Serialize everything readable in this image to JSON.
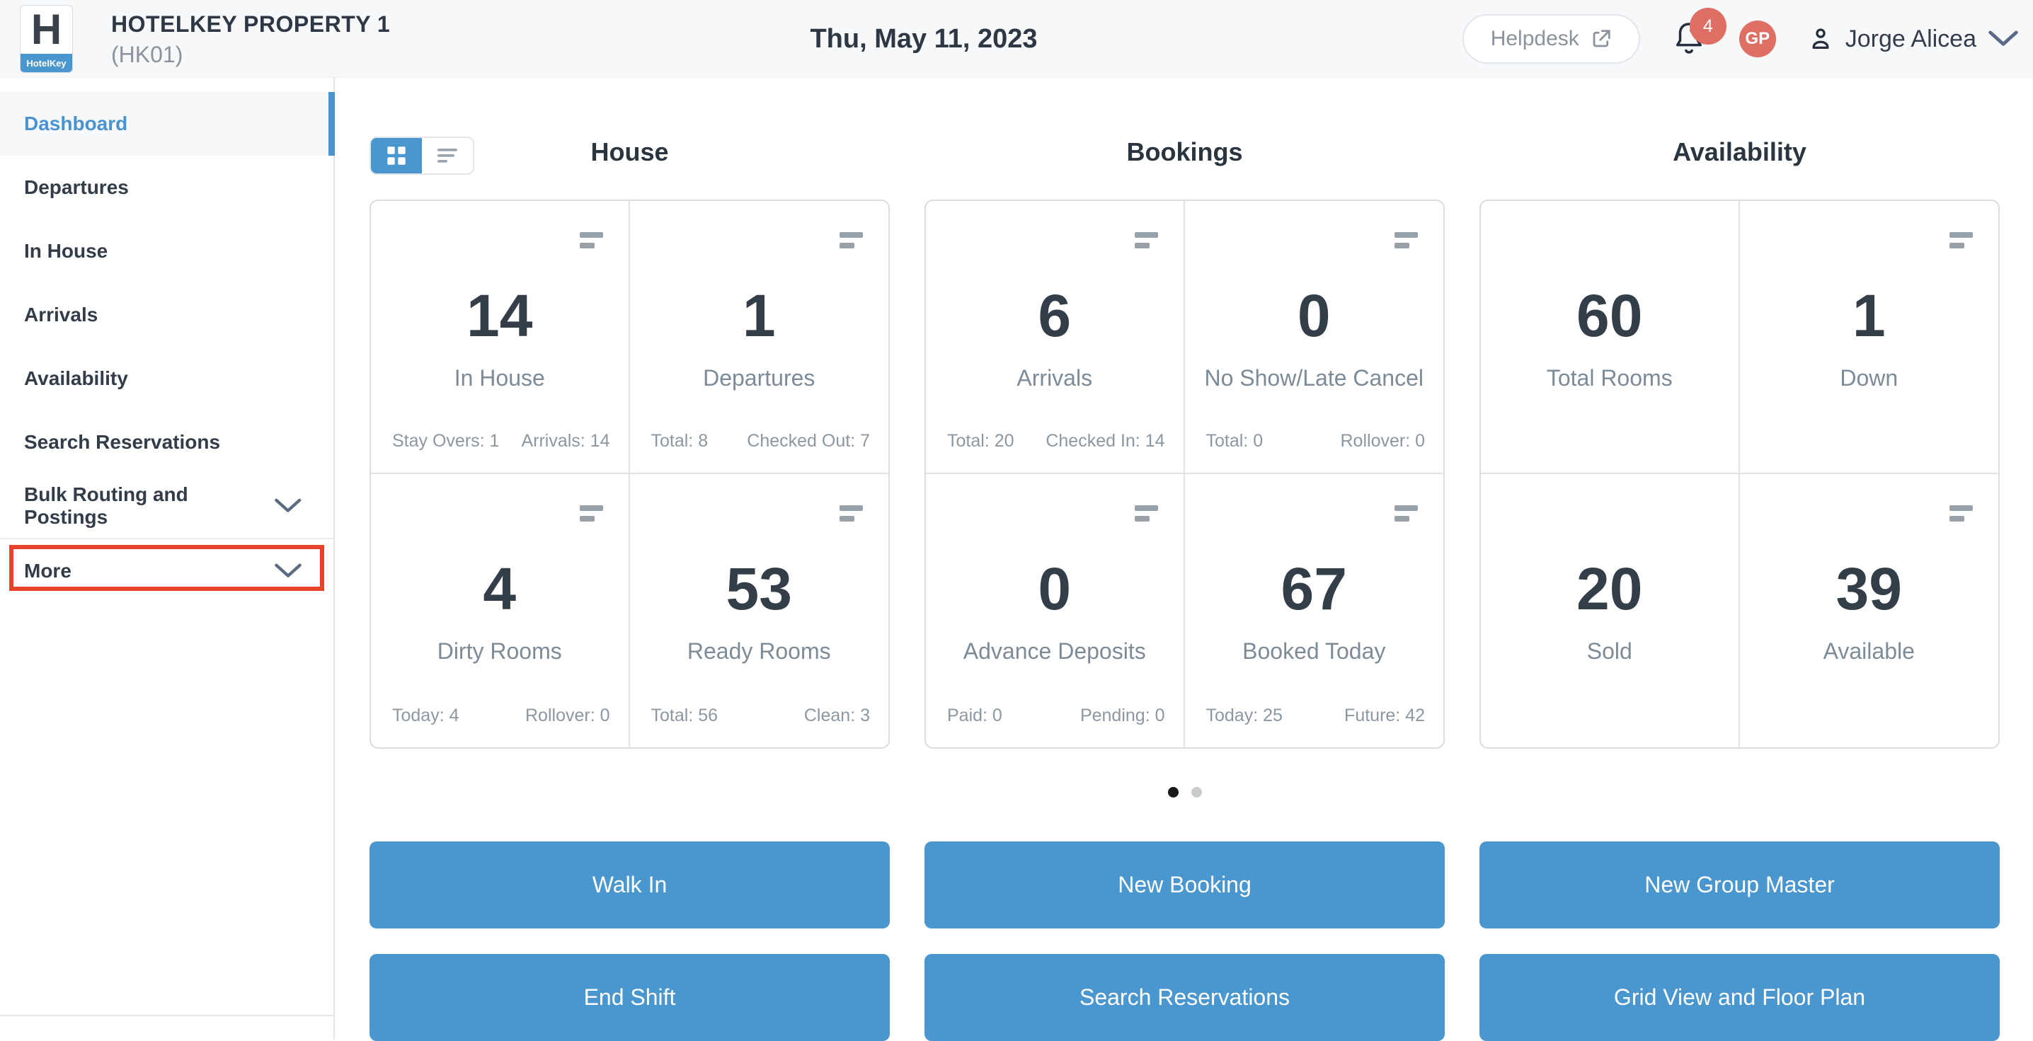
{
  "header": {
    "logo_letter": "H",
    "logo_brand": "HotelKey",
    "property_name": "HOTELKEY PROPERTY 1",
    "property_code": "(HK01)",
    "date": "Thu, May 11, 2023",
    "helpdesk_label": "Helpdesk",
    "notification_count": "4",
    "avatar_initials": "GP",
    "user_name": "Jorge Alicea"
  },
  "sidebar": {
    "items": [
      {
        "label": "Dashboard",
        "active": true
      },
      {
        "label": "Departures"
      },
      {
        "label": "In House"
      },
      {
        "label": "Arrivals"
      },
      {
        "label": "Availability"
      },
      {
        "label": "Search Reservations"
      },
      {
        "label": "Bulk Routing and Postings",
        "chevron": true
      },
      {
        "label": "More",
        "chevron": true,
        "highlighted": true,
        "divider_before": true
      }
    ]
  },
  "dashboard": {
    "view_modes": [
      "grid",
      "list"
    ],
    "active_view": "grid",
    "sections": [
      {
        "title": "House",
        "cells": [
          {
            "value": "14",
            "label": "In House",
            "stat_left": "Stay Overs: 1",
            "stat_right": "Arrivals: 14",
            "icon": true
          },
          {
            "value": "1",
            "label": "Departures",
            "stat_left": "Total: 8",
            "stat_right": "Checked Out: 7",
            "icon": true
          },
          {
            "value": "4",
            "label": "Dirty Rooms",
            "stat_left": "Today: 4",
            "stat_right": "Rollover: 0",
            "icon": true
          },
          {
            "value": "53",
            "label": "Ready Rooms",
            "stat_left": "Total: 56",
            "stat_right": "Clean: 3",
            "icon": true
          }
        ]
      },
      {
        "title": "Bookings",
        "cells": [
          {
            "value": "6",
            "label": "Arrivals",
            "stat_left": "Total: 20",
            "stat_right": "Checked In: 14",
            "icon": true
          },
          {
            "value": "0",
            "label": "No Show/Late Cancel",
            "stat_left": "Total: 0",
            "stat_right": "Rollover: 0",
            "icon": true
          },
          {
            "value": "0",
            "label": "Advance Deposits",
            "stat_left": "Paid: 0",
            "stat_right": "Pending: 0",
            "icon": true
          },
          {
            "value": "67",
            "label": "Booked Today",
            "stat_left": "Today: 25",
            "stat_right": "Future: 42",
            "icon": true
          }
        ]
      },
      {
        "title": "Availability",
        "cells": [
          {
            "value": "60",
            "label": "Total Rooms",
            "icon": false
          },
          {
            "value": "1",
            "label": "Down",
            "icon": true
          },
          {
            "value": "20",
            "label": "Sold",
            "icon": false
          },
          {
            "value": "39",
            "label": "Available",
            "icon": true
          }
        ]
      }
    ],
    "pagination": {
      "count": 2,
      "active_index": 0
    },
    "actions": [
      "Walk In",
      "New Booking",
      "New Group Master",
      "End Shift",
      "Search Reservations",
      "Grid View and Floor Plan"
    ]
  },
  "icons": {
    "view_grid": "grid-view-icon",
    "view_list": "list-view-icon",
    "card_menu": "stats-bars-icon",
    "notification": "bell-icon",
    "user": "person-icon",
    "helpdesk": "external-link-icon",
    "expand": "chevron-down-icon"
  },
  "colors": {
    "accent_blue": "#4a96ce",
    "active_link_blue": "#4a93ce",
    "highlight_red": "#e8432a",
    "badge_red": "#df6e64",
    "avatar_bg": "#df6e64",
    "number_text": "#333e48",
    "label_text": "#7c8b97",
    "header_bg": "#f7f8f9"
  }
}
